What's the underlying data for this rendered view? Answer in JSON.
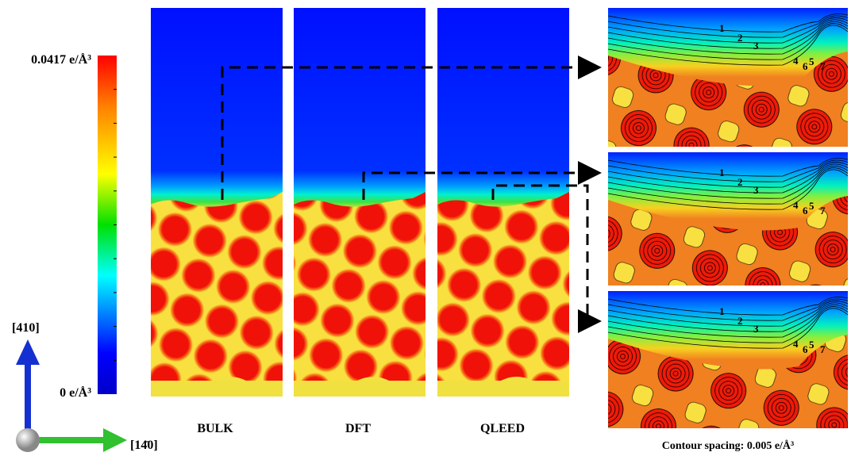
{
  "colorbar": {
    "max_label": "0.0417 e/Å³",
    "min_label": "0 e/Å³"
  },
  "axes": {
    "vertical": "[410]",
    "horizontal": "[14̄0]"
  },
  "panels": [
    "BULK",
    "DFT",
    "QLEED"
  ],
  "contour_note": "Contour spacing: 0.005 e/Å³",
  "contour_labels": [
    "1",
    "2",
    "3",
    "4",
    "5",
    "6",
    "7"
  ]
}
